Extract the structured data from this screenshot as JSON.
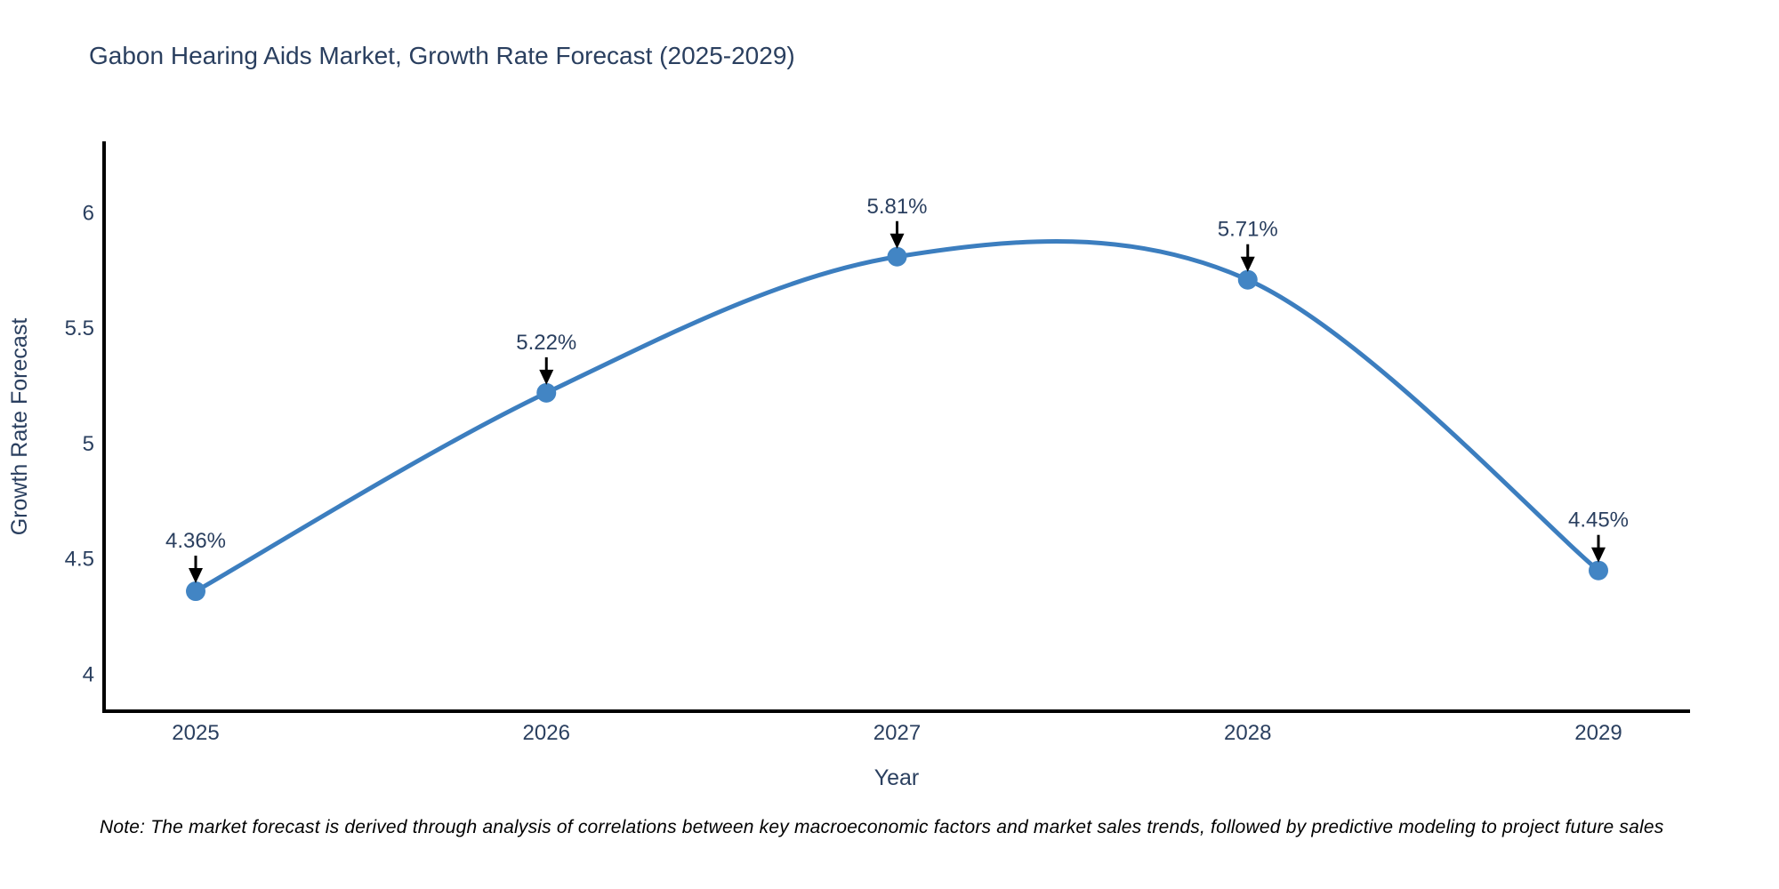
{
  "page": {
    "note": "Note: The market forecast is derived through analysis of correlations between key macroeconomic factors and market sales trends, followed by predictive modeling to project future sales"
  },
  "chart_data": {
    "type": "line",
    "title": "Gabon Hearing Aids Market, Growth Rate Forecast (2025-2029)",
    "xlabel": "Year",
    "ylabel": "Growth Rate Forecast",
    "x": [
      2025,
      2026,
      2027,
      2028,
      2029
    ],
    "values": [
      4.36,
      5.22,
      5.81,
      5.71,
      4.45
    ],
    "point_labels": [
      "4.36%",
      "5.22%",
      "5.81%",
      "5.71%",
      "4.45%"
    ],
    "xtick_labels": [
      "2025",
      "2026",
      "2027",
      "2028",
      "2029"
    ],
    "yticks": [
      4,
      4.5,
      5,
      5.5,
      6
    ],
    "ytick_labels": [
      "4",
      "4.5",
      "5",
      "5.5",
      "6"
    ],
    "ylim": [
      3.84,
      6.31
    ],
    "line_shape": "spline",
    "grid": false,
    "legend": false,
    "colors": {
      "line": "#3c7ebf",
      "marker": "#4285c4",
      "axis": "#000000",
      "text": "#2a3f5f",
      "annotation_arrow": "#000000",
      "note_text": "#000000",
      "background": "#ffffff"
    }
  }
}
